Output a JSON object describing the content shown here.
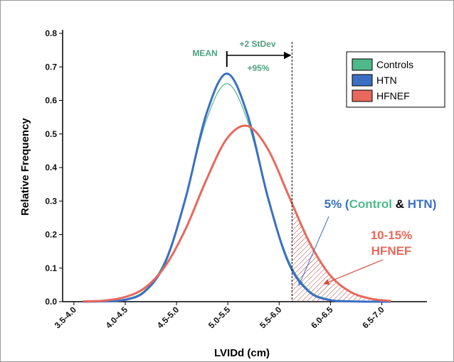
{
  "chart_data": {
    "type": "line",
    "x_label": "LVIDd (cm)",
    "y_label": "Relative Frequency",
    "x": [
      3.84,
      4.04,
      4.24,
      4.44,
      4.64,
      4.84,
      5.04,
      5.24,
      5.44,
      5.64,
      5.84,
      6.04,
      6.24,
      6.44,
      6.64,
      6.84
    ],
    "series": [
      {
        "name": "Controls",
        "color": "#4fb98a",
        "values": [
          0.0,
          0.001,
          0.007,
          0.034,
          0.124,
          0.312,
          0.541,
          0.65,
          0.541,
          0.312,
          0.124,
          0.034,
          0.007,
          0.001,
          0.0,
          0.0
        ]
      },
      {
        "name": "HTN",
        "color": "#3a6fc4",
        "values": [
          0.0,
          0.001,
          0.005,
          0.03,
          0.117,
          0.311,
          0.559,
          0.68,
          0.559,
          0.311,
          0.117,
          0.03,
          0.005,
          0.001,
          0.0,
          0.0
        ]
      },
      {
        "name": "HFNEF",
        "color": "#e8685c",
        "values": [
          0.001,
          0.003,
          0.013,
          0.041,
          0.106,
          0.218,
          0.363,
          0.486,
          0.524,
          0.455,
          0.318,
          0.18,
          0.081,
          0.03,
          0.009,
          0.002
        ]
      }
    ],
    "xlim": [
      3.64,
      7.19
    ],
    "ylim": [
      0,
      0.8
    ],
    "xticks": [
      {
        "value": 3.75,
        "label": "3.5-4.0"
      },
      {
        "value": 4.25,
        "label": "4.0-4.5"
      },
      {
        "value": 4.75,
        "label": "4.5-5.0"
      },
      {
        "value": 5.25,
        "label": "5.0-5.5"
      },
      {
        "value": 5.75,
        "label": "5.5-6.0"
      },
      {
        "value": 6.25,
        "label": "6.0-6.5"
      },
      {
        "value": 6.75,
        "label": "6.5-7.0"
      }
    ],
    "yticks": [
      {
        "value": 0,
        "label": "0.0"
      },
      0.1,
      0.2,
      0.3,
      0.4,
      0.5,
      0.6,
      0.7,
      0.8
    ],
    "mean": 5.24,
    "threshold": 5.875,
    "legend": "top-right",
    "annotations": {
      "mean": "MEAN",
      "sd": "+2 StDev",
      "pct": "+95%",
      "callout1": [
        "5% (",
        "Control",
        " & ",
        "HTN",
        ")"
      ],
      "callout2": [
        "10-15%",
        "HFNEF"
      ]
    }
  }
}
